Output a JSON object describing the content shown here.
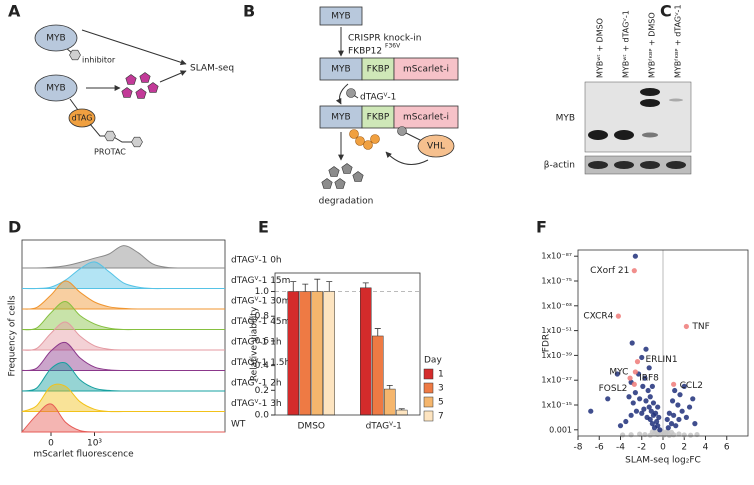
{
  "diagram_a": {
    "label": "A",
    "myb_top": "MYB",
    "inhibitor": "inhibitor",
    "slam_seq": "SLAM-seq",
    "myb_bottom": "MYB",
    "dtag": "dTAG",
    "protac": "PROTAC"
  },
  "diagram_b": {
    "label": "B",
    "myb": "MYB",
    "step_1": "CRISPR knock-in",
    "step_1b": "FKBP12",
    "step_1b_sup": "F36V",
    "row_1": [
      "MYB",
      "FKBP",
      "mScarlet-i"
    ],
    "step_2": "dTAGⱽ-1",
    "row_2": [
      "MYB",
      "FKBP",
      "mScarlet-i"
    ],
    "vhl": "VHL",
    "end": "degradation"
  },
  "blot_c": {
    "label": "C",
    "lanes": [
      "MYBʷᵗ + DMSO",
      "MYBʷᵗ + dTAGⱽ-1",
      "MYBᶠᴷᴮᴾ + DMSO",
      "MYBᶠᴷᴮᴾ + dTAGⱽ-1"
    ],
    "rows": [
      "MYB",
      "β-actin"
    ]
  },
  "chart_data": [
    {
      "panel": "D",
      "type": "ridgeline",
      "ylabel": "Frequency of cells",
      "xlabel": "mScarlet fluorescence",
      "x": [
        -2,
        -1,
        0,
        1,
        2,
        3,
        4,
        5,
        6,
        7,
        8,
        9,
        10,
        11,
        12
      ],
      "xlim": [
        -2,
        12
      ],
      "xticks": [
        0,
        {
          "value": 3,
          "label": "10³"
        }
      ],
      "ylim": [
        0,
        1
      ],
      "series": [
        {
          "name": "dTAGⱽ-1 0h",
          "color": "#8a8a8a",
          "values": [
            0,
            0,
            0.02,
            0.08,
            0.2,
            0.35,
            0.5,
            0.8,
            0.55,
            0.15,
            0.02,
            0,
            0,
            0,
            0
          ]
        },
        {
          "name": "dTAGⱽ-1 15m",
          "color": "#56c3e6",
          "values": [
            0,
            0,
            0.05,
            0.3,
            0.7,
            0.95,
            0.6,
            0.2,
            0.05,
            0,
            0,
            0,
            0,
            0,
            0
          ]
        },
        {
          "name": "dTAGⱽ-1 30m",
          "color": "#f0952f",
          "values": [
            0,
            0.05,
            0.5,
            1,
            0.6,
            0.25,
            0.08,
            0.02,
            0,
            0,
            0,
            0,
            0,
            0,
            0
          ]
        },
        {
          "name": "dTAGⱽ-1 45m",
          "color": "#86c040",
          "values": [
            0,
            0.05,
            0.6,
            1,
            0.5,
            0.2,
            0.05,
            0,
            0,
            0,
            0,
            0,
            0,
            0,
            0
          ]
        },
        {
          "name": "dTAGⱽ-1 1h",
          "color": "#e49aa2",
          "values": [
            0,
            0.05,
            0.6,
            1,
            0.5,
            0.15,
            0.03,
            0,
            0,
            0,
            0,
            0,
            0,
            0,
            0
          ]
        },
        {
          "name": "dTAGⱽ-1 1.5h",
          "color": "#8b378b",
          "values": [
            0,
            0.08,
            0.7,
            1,
            0.45,
            0.12,
            0.02,
            0,
            0,
            0,
            0,
            0,
            0,
            0,
            0
          ]
        },
        {
          "name": "dTAGⱽ-1 2h",
          "color": "#16a0a0",
          "values": [
            0,
            0.1,
            0.8,
            1,
            0.4,
            0.1,
            0.02,
            0,
            0,
            0,
            0,
            0,
            0,
            0,
            0
          ]
        },
        {
          "name": "dTAGⱽ-1 3h",
          "color": "#f2c21a",
          "values": [
            0,
            0.2,
            0.9,
            0.9,
            0.35,
            0.08,
            0,
            0,
            0,
            0,
            0,
            0,
            0,
            0,
            0
          ]
        },
        {
          "name": "WT",
          "color": "#e65a55",
          "values": [
            0,
            0.6,
            1,
            0.35,
            0.05,
            0,
            0,
            0,
            0,
            0,
            0,
            0,
            0,
            0,
            0
          ]
        }
      ]
    },
    {
      "panel": "E",
      "type": "bar",
      "ylabel": "Relative viability",
      "categories": [
        "DMSO",
        "dTAGⱽ-1"
      ],
      "ylim": [
        0,
        1.15
      ],
      "yticks": [
        {
          "value": 0,
          "label": "0.0"
        },
        {
          "value": 0.2,
          "label": "0.2"
        },
        {
          "value": 0.4,
          "label": "0.4"
        },
        {
          "value": 0.6,
          "label": "0.6"
        },
        {
          "value": 0.8,
          "label": "0.8"
        },
        {
          "value": 1,
          "label": "1.0"
        }
      ],
      "hline": 1,
      "legend_title": "Day",
      "series": [
        {
          "name": "1",
          "color": "#d42b2b",
          "values": [
            1,
            1.03
          ],
          "errors": [
            0.08,
            0.04
          ]
        },
        {
          "name": "3",
          "color": "#ee7a44",
          "values": [
            1,
            0.64
          ],
          "errors": [
            0.06,
            0.06
          ]
        },
        {
          "name": "5",
          "color": "#f5b66d",
          "values": [
            1,
            0.21
          ],
          "errors": [
            0.1,
            0.03
          ]
        },
        {
          "name": "7",
          "color": "#fde4c0",
          "values": [
            1,
            0.04
          ],
          "errors": [
            0.08,
            0.01
          ]
        }
      ]
    },
    {
      "panel": "F",
      "type": "scatter",
      "ylabel": "FDR",
      "xlabel": "SLAM-seq log₂FC",
      "log_scale": true,
      "vline": 0,
      "xlim": [
        -8,
        8
      ],
      "xticks": [
        -8,
        -6,
        -4,
        -2,
        0,
        2,
        4,
        6
      ],
      "ylim": [
        1,
        1e-90
      ],
      "yticks": [
        {
          "value": 1e-87,
          "label": "1x10⁻⁸⁷"
        },
        {
          "value": 1e-75,
          "label": "1x10⁻⁷⁵"
        },
        {
          "value": 1e-63,
          "label": "1x10⁻⁶³"
        },
        {
          "value": 1e-51,
          "label": "1x10⁻⁵¹"
        },
        {
          "value": 1e-39,
          "label": "1x10⁻³⁹"
        },
        {
          "value": 1e-27,
          "label": "1x10⁻²⁷"
        },
        {
          "value": 1e-15,
          "label": "1x10⁻¹⁵"
        },
        0.001
      ],
      "series": [
        {
          "color": "#c4c4c4",
          "x": [
            0.1,
            -0.2,
            0.3,
            -0.5,
            0.6,
            -0.8,
            1,
            -1.2,
            1.5,
            -1.7,
            2,
            -2.2,
            2.6,
            -3,
            0,
            -0.3,
            0.4,
            -1,
            0.8,
            -3.8,
            3.2,
            -0.6
          ],
          "values": [
            0.3,
            0.1,
            0.03,
            0.16,
            0.5,
            0.06,
            0.25,
            0.4,
            0.1,
            0.2,
            0.3,
            0.12,
            0.4,
            0.25,
            0.01,
            0.003,
            0.006,
            0.01,
            0.016,
            0.3,
            0.2,
            0.02
          ]
        },
        {
          "color": "#1f2f7a",
          "x": [
            -0.3,
            -0.5,
            -0.8,
            -1,
            -1.2,
            -0.6,
            -0.9,
            -1.5,
            -1.1,
            -0.7,
            -1.3,
            -1.8,
            -0.4,
            -2,
            -2.5,
            -3,
            -3.5,
            -4,
            -1.6,
            -1.2,
            -0.9,
            -2.2,
            -2.8,
            -1.4,
            -1.9,
            -2.6,
            -3.2,
            -1,
            -1.7,
            -2.3,
            -1.3,
            -3,
            -2,
            -1.6,
            -2.9,
            -4.3,
            -5.2,
            -6.8,
            -0.5,
            -2.6,
            0.5,
            0.8,
            1.2,
            1.5,
            1,
            1.8,
            2.2,
            0.6,
            1.4,
            2.5,
            3,
            0.9,
            1.6,
            2,
            0.4,
            2.8,
            1.1
          ],
          "values": [
            0.001,
            1e-05,
            0.0001,
            1e-06,
            1e-08,
            1e-07,
            1e-10,
            1e-09,
            1e-12,
            1e-11,
            1e-14,
            1e-13,
            1e-09,
            1e-11,
            1e-12,
            1e-10,
            1e-07,
            1e-05,
            1e-17,
            1e-19,
            1e-16,
            1e-18,
            1e-16,
            1e-22,
            1e-24,
            1e-21,
            1e-19,
            1e-24,
            1e-28,
            1e-30,
            1e-33,
            1e-26,
            1e-38,
            1e-42,
            1e-45,
            1e-30,
            1e-18,
            1e-12,
            1e-14,
            1e-87,
            0.0001,
            1e-06,
            1e-05,
            1e-08,
            1e-10,
            1e-12,
            1e-09,
            1e-11,
            1e-15,
            1e-14,
            1e-06,
            1e-17,
            1e-20,
            1e-24,
            1e-08,
            1e-18,
            1e-22
          ]
        },
        {
          "color": "#ef7a78",
          "x": [
            -2.7,
            -4.2,
            2.2,
            -2.4,
            -2.6,
            -3.1,
            -2.7,
            1
          ],
          "values": [
            1e-80,
            1e-58,
            1e-53,
            1e-36,
            1e-31,
            1e-28,
            1e-25,
            1e-25
          ],
          "point_labels": [
            "CXorf 21",
            "CXCR4",
            "TNF",
            "ERLIN1",
            "MYC",
            "IRF8",
            "FOSL2",
            "CCL2"
          ]
        }
      ]
    }
  ]
}
